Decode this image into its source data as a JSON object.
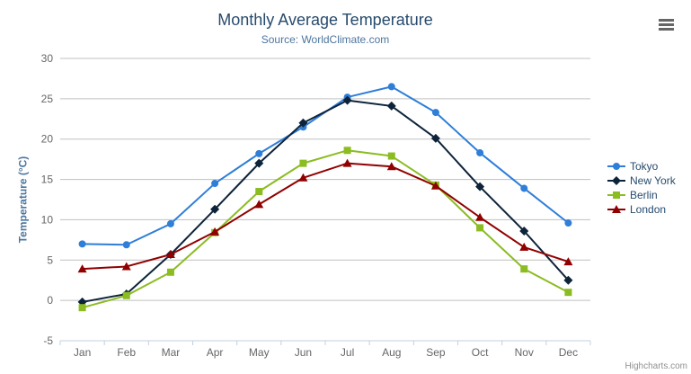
{
  "chart": {
    "title": "Monthly Average Temperature",
    "subtitle": "Source: WorldClimate.com",
    "y_axis_title": "Temperature (°C)",
    "credits": "Highcharts.com"
  },
  "icons": {
    "context_menu_icon": "hamburger (three horizontal bars)"
  },
  "colors": {
    "title": "#274b6d",
    "subtitle": "#4d759e",
    "axis_labels": "#666666",
    "axis_line": "#c0d0e0",
    "gridline": "#c0c0c0",
    "legend_text": "#274b6d",
    "credits": "#909090",
    "background": "#ffffff"
  },
  "chart_data": {
    "type": "line",
    "title": "Monthly Average Temperature",
    "subtitle": "Source: WorldClimate.com",
    "xlabel": "",
    "ylabel": "Temperature (°C)",
    "ylim": [
      -5,
      30
    ],
    "yticks": [
      -5,
      0,
      5,
      10,
      15,
      20,
      25,
      30
    ],
    "grid": true,
    "legend_position": "right",
    "categories": [
      "Jan",
      "Feb",
      "Mar",
      "Apr",
      "May",
      "Jun",
      "Jul",
      "Aug",
      "Sep",
      "Oct",
      "Nov",
      "Dec"
    ],
    "series": [
      {
        "name": "Tokyo",
        "color": "#2f7ed8",
        "marker": "circle",
        "values": [
          7.0,
          6.9,
          9.5,
          14.5,
          18.2,
          21.5,
          25.2,
          26.5,
          23.3,
          18.3,
          13.9,
          9.6
        ]
      },
      {
        "name": "New York",
        "color": "#0d233a",
        "marker": "diamond",
        "values": [
          -0.2,
          0.8,
          5.7,
          11.3,
          17.0,
          22.0,
          24.8,
          24.1,
          20.1,
          14.1,
          8.6,
          2.5
        ]
      },
      {
        "name": "Berlin",
        "color": "#8bbc21",
        "marker": "square",
        "values": [
          -0.9,
          0.6,
          3.5,
          8.4,
          13.5,
          17.0,
          18.6,
          17.9,
          14.3,
          9.0,
          3.9,
          1.0
        ]
      },
      {
        "name": "London",
        "color": "#910000",
        "marker": "triangle",
        "values": [
          3.9,
          4.2,
          5.7,
          8.5,
          11.9,
          15.2,
          17.0,
          16.6,
          14.2,
          10.3,
          6.6,
          4.8
        ]
      }
    ]
  }
}
